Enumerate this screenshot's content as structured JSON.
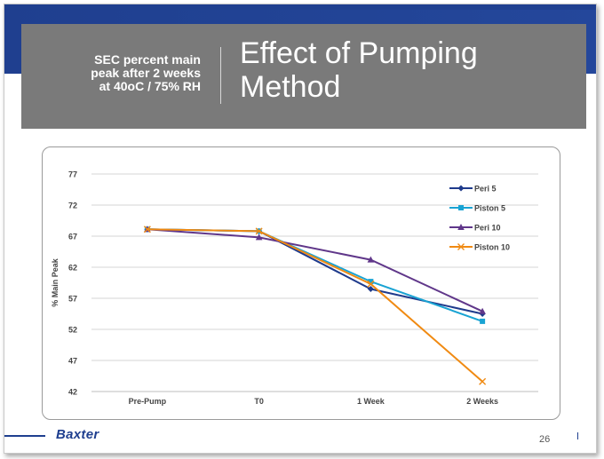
{
  "header": {
    "subtitle": "SEC percent main\npeak after 2 weeks\nat 40oC / 75% RH",
    "title": "Effect of Pumping Method"
  },
  "footer": {
    "logo": "Baxter",
    "page_number": "26"
  },
  "colors": {
    "brand": "#1f3f8f",
    "title_box": "#7a7a7a",
    "peri5": "#1f3b8c",
    "piston5": "#19a3d3",
    "peri10": "#60378a",
    "piston10": "#f08a12"
  },
  "chart_data": {
    "type": "line",
    "title": "",
    "xlabel": "",
    "ylabel": "% Main Peak",
    "categories": [
      "Pre-Pump",
      "T0",
      "1 Week",
      "2 Weeks"
    ],
    "ylim": [
      42,
      77
    ],
    "yticks": [
      42,
      47,
      52,
      57,
      62,
      67,
      72,
      77
    ],
    "grid": true,
    "legend_position": "right",
    "series": [
      {
        "name": "Peri 5",
        "marker": "diamond",
        "color": "#1f3b8c",
        "values": [
          68.1,
          67.8,
          58.5,
          54.5
        ]
      },
      {
        "name": "Piston 5",
        "marker": "square",
        "color": "#19a3d3",
        "values": [
          68.1,
          67.8,
          59.7,
          53.3
        ]
      },
      {
        "name": "Peri 10",
        "marker": "triangle",
        "color": "#60378a",
        "values": [
          68.1,
          66.8,
          63.2,
          54.9
        ]
      },
      {
        "name": "Piston 10",
        "marker": "x",
        "color": "#f08a12",
        "values": [
          68.1,
          67.8,
          59.3,
          43.6
        ]
      }
    ]
  }
}
